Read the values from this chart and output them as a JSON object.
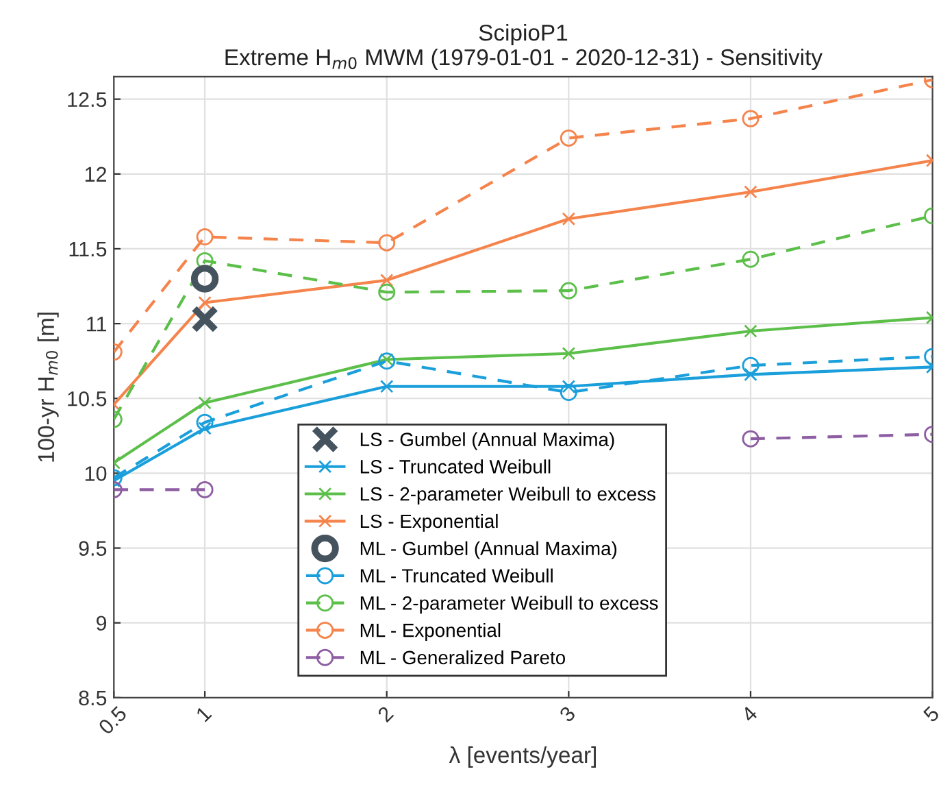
{
  "chart_data": {
    "type": "line",
    "title": "ScipioP1\nExtreme H$_{m0}$ MWM (1979-01-01 - 2020-12-31) - Sensitivity",
    "xlabel": "λ [events/year]",
    "ylabel": "100-yr H$_{m0}$ [m]",
    "x": [
      0.5,
      1,
      2,
      3,
      4,
      5
    ],
    "xlim": [
      0.5,
      5
    ],
    "xticks": [
      0.5,
      1,
      2,
      3,
      4,
      5
    ],
    "ylim": [
      8.5,
      12.65
    ],
    "yticks": [
      8.5,
      9,
      9.5,
      10,
      10.5,
      11,
      11.5,
      12,
      12.5
    ],
    "grid": true,
    "legend": "bottom",
    "series": [
      {
        "name": "LS - Gumbel (Annual Maxima)",
        "color": "#45535e",
        "type": "scatter",
        "marker": "cross",
        "x": [
          1
        ],
        "values": [
          11.03
        ]
      },
      {
        "name": "LS - Truncated Weibull",
        "color": "#1a9fdb",
        "marker": "cross",
        "line_style": "solid",
        "values": [
          9.95,
          10.3,
          10.58,
          10.58,
          10.66,
          10.71
        ]
      },
      {
        "name": "LS - 2-parameter Weibull to excess",
        "color": "#5cbf4a",
        "marker": "cross",
        "line_style": "solid",
        "values": [
          10.07,
          10.47,
          10.76,
          10.8,
          10.95,
          11.04
        ]
      },
      {
        "name": "LS - Exponential",
        "color": "#f5844c",
        "marker": "cross",
        "line_style": "solid",
        "values": [
          10.46,
          11.14,
          11.29,
          11.7,
          11.88,
          12.09
        ]
      },
      {
        "name": "ML - Gumbel (Annual Maxima)",
        "color": "#45535e",
        "type": "scatter",
        "marker": "circle",
        "x": [
          1
        ],
        "values": [
          11.3
        ]
      },
      {
        "name": "ML - Truncated Weibull",
        "color": "#1a9fdb",
        "marker": "circle",
        "line_style": "dashed",
        "values": [
          9.97,
          10.34,
          10.75,
          10.54,
          10.72,
          10.78
        ]
      },
      {
        "name": "ML - 2-parameter Weibull to excess",
        "color": "#5cbf4a",
        "marker": "circle",
        "line_style": "dashed",
        "values": [
          10.36,
          11.42,
          11.21,
          11.22,
          11.43,
          11.72
        ]
      },
      {
        "name": "ML - Exponential",
        "color": "#f5844c",
        "marker": "circle",
        "line_style": "dashed",
        "values": [
          10.81,
          11.58,
          11.54,
          12.24,
          12.37,
          12.63
        ]
      },
      {
        "name": "ML - Generalized Pareto",
        "color": "#8e5ea2",
        "marker": "circle",
        "line_style": "dashed",
        "values": [
          9.89,
          9.89,
          null,
          null,
          10.23,
          10.26
        ]
      }
    ]
  }
}
